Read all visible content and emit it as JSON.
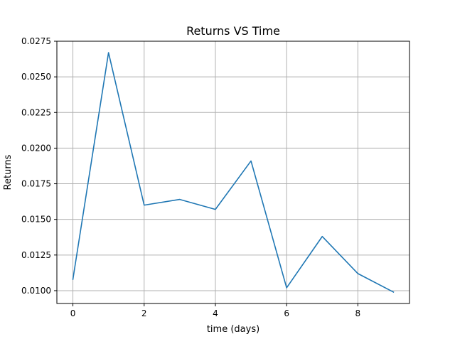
{
  "chart_data": {
    "type": "line",
    "title": "Returns VS Time",
    "xlabel": "time (days)",
    "ylabel": "Returns",
    "xlim": [
      -0.45,
      9.45
    ],
    "ylim": [
      0.0091,
      0.0275
    ],
    "xticks": [
      0,
      2,
      4,
      6,
      8
    ],
    "xtick_labels": [
      "0",
      "2",
      "4",
      "6",
      "8"
    ],
    "yticks": [
      0.01,
      0.0125,
      0.015,
      0.0175,
      0.02,
      0.0225,
      0.025,
      0.0275
    ],
    "ytick_labels": [
      "0.0100",
      "0.0125",
      "0.0150",
      "0.0175",
      "0.0200",
      "0.0225",
      "0.0250",
      "0.0275"
    ],
    "grid": true,
    "series": [
      {
        "color": "#1f77b4",
        "x": [
          0,
          1,
          2,
          3,
          4,
          5,
          6,
          7,
          8,
          9
        ],
        "y": [
          0.0108,
          0.0267,
          0.016,
          0.0164,
          0.0157,
          0.0191,
          0.0102,
          0.0138,
          0.0112,
          0.0099
        ]
      }
    ]
  }
}
